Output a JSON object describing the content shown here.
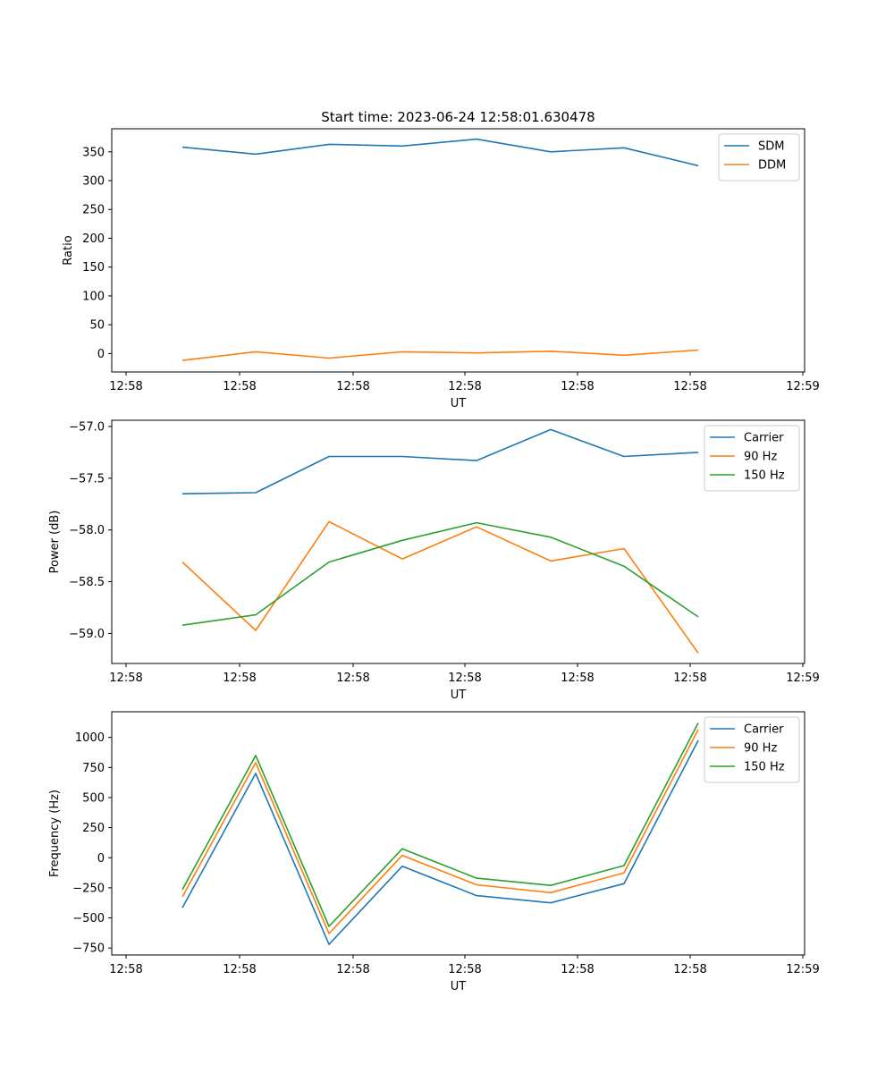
{
  "chart_data": [
    {
      "type": "line",
      "title": "Start time: 2023-06-24 12:58:01.630478",
      "xlabel": "UT",
      "ylabel": "Ratio",
      "x_ticks": [
        "12:58",
        "12:58",
        "12:58",
        "12:58",
        "12:58",
        "12:58",
        "12:58",
        "12:59"
      ],
      "x": [
        1,
        2,
        3,
        4,
        5,
        6,
        7,
        8
      ],
      "y_ticks": [
        0,
        50,
        100,
        150,
        200,
        250,
        300,
        350
      ],
      "ylim": [
        -32,
        390
      ],
      "legend": "top-right",
      "grid": false,
      "series": [
        {
          "name": "SDM",
          "color": "#1f77b4",
          "values": [
            358,
            346,
            363,
            360,
            372,
            350,
            357,
            326
          ]
        },
        {
          "name": "DDM",
          "color": "#ff7f0e",
          "values": [
            -12,
            3,
            -8,
            3,
            1,
            4,
            -3,
            6
          ]
        }
      ]
    },
    {
      "type": "line",
      "title": "",
      "xlabel": "UT",
      "ylabel": "Power (dB)",
      "x_ticks": [
        "12:58",
        "12:58",
        "12:58",
        "12:58",
        "12:58",
        "12:58",
        "12:58",
        "12:59"
      ],
      "x": [
        1,
        2,
        3,
        4,
        5,
        6,
        7,
        8
      ],
      "y_ticks": [
        -57.0,
        -57.5,
        -58.0,
        -58.5,
        -59.0
      ],
      "ylim": [
        -59.29,
        -56.94
      ],
      "legend": "top-right",
      "grid": false,
      "series": [
        {
          "name": "Carrier",
          "color": "#1f77b4",
          "values": [
            -57.65,
            -57.64,
            -57.29,
            -57.29,
            -57.33,
            -57.03,
            -57.29,
            -57.25
          ]
        },
        {
          "name": "90 Hz",
          "color": "#ff7f0e",
          "values": [
            -58.31,
            -58.97,
            -57.92,
            -58.28,
            -57.97,
            -58.3,
            -58.18,
            -59.19
          ]
        },
        {
          "name": "150 Hz",
          "color": "#2ca02c",
          "values": [
            -58.92,
            -58.82,
            -58.31,
            -58.1,
            -57.93,
            -58.07,
            -58.35,
            -58.84
          ]
        }
      ]
    },
    {
      "type": "line",
      "title": "",
      "xlabel": "UT",
      "ylabel": "Frequency (Hz)",
      "x_ticks": [
        "12:58",
        "12:58",
        "12:58",
        "12:58",
        "12:58",
        "12:58",
        "12:58",
        "12:59"
      ],
      "x": [
        1,
        2,
        3,
        4,
        5,
        6,
        7,
        8
      ],
      "y_ticks": [
        1000,
        750,
        500,
        250,
        0,
        -250,
        -500,
        -750
      ],
      "ylim": [
        -808,
        1213
      ],
      "legend": "top-right",
      "grid": false,
      "series": [
        {
          "name": "Carrier",
          "color": "#1f77b4",
          "values": [
            -415,
            700,
            -720,
            -70,
            -315,
            -375,
            -215,
            975
          ]
        },
        {
          "name": "90 Hz",
          "color": "#ff7f0e",
          "values": [
            -325,
            790,
            -630,
            20,
            -225,
            -290,
            -125,
            1065
          ]
        },
        {
          "name": "150 Hz",
          "color": "#2ca02c",
          "values": [
            -265,
            850,
            -570,
            75,
            -170,
            -230,
            -65,
            1120
          ]
        }
      ]
    }
  ]
}
